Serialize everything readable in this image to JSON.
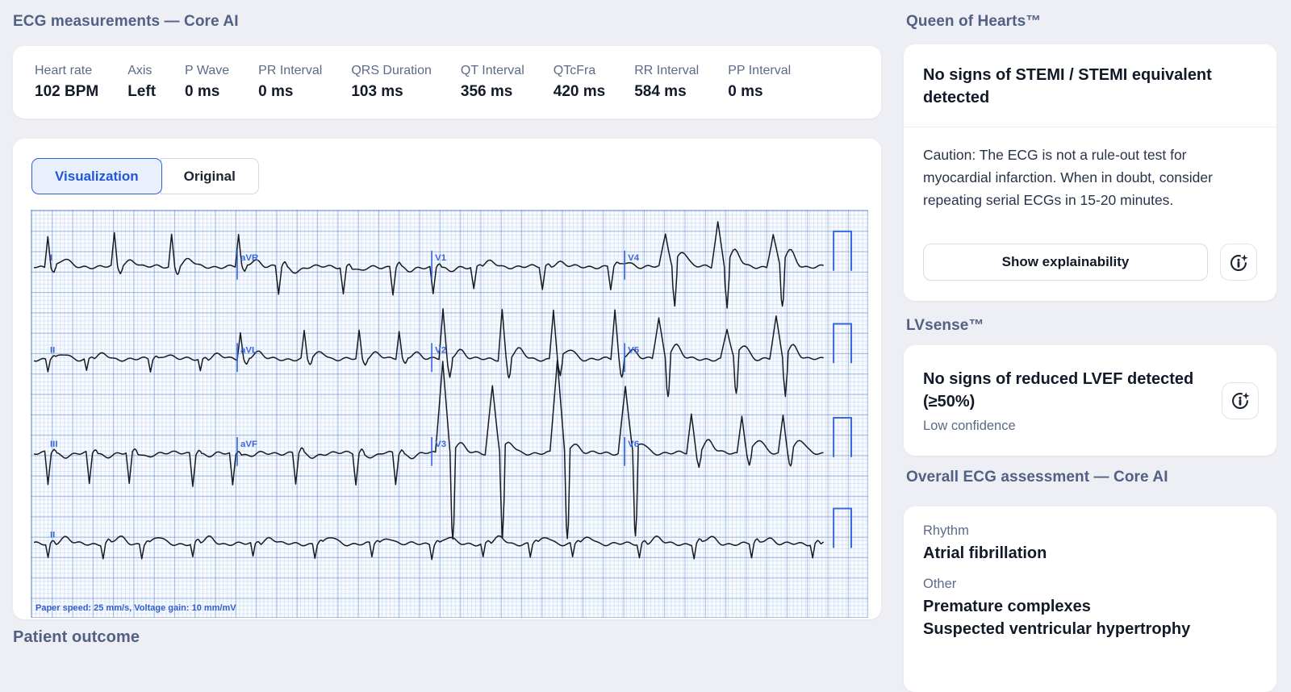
{
  "colors": {
    "accent_blue": "#2156d4",
    "ecg_blue": "#3a67e0",
    "trace_black": "#161a21",
    "heading_slate": "#516083",
    "label_slate": "#5b6b88",
    "page_bg": "#edeff4"
  },
  "ecg": {
    "title": "ECG measurements — Core AI",
    "measurements": [
      {
        "label": "Heart rate",
        "value": "102 BPM"
      },
      {
        "label": "Axis",
        "value": "Left"
      },
      {
        "label": "P Wave",
        "value": "0 ms"
      },
      {
        "label": "PR Interval",
        "value": "0 ms"
      },
      {
        "label": "QRS Duration",
        "value": "103 ms"
      },
      {
        "label": "QT Interval",
        "value": "356 ms"
      },
      {
        "label": "QTcFra",
        "value": "420 ms"
      },
      {
        "label": "RR Interval",
        "value": "584 ms"
      },
      {
        "label": "PP Interval",
        "value": "0 ms"
      }
    ],
    "tabs": [
      {
        "label": "Visualization",
        "active": true
      },
      {
        "label": "Original",
        "active": false
      }
    ],
    "chart": {
      "rows": [
        [
          "I",
          "aVR",
          "V1",
          "V4"
        ],
        [
          "II",
          "aVL",
          "V2",
          "V5"
        ],
        [
          "III",
          "aVF",
          "V3",
          "V6"
        ],
        [
          "II"
        ]
      ],
      "footnote": "Paper speed: 25 mm/s, Voltage gain: 10 mm/mV"
    }
  },
  "patient_outcome": {
    "title": "Patient outcome"
  },
  "qoh": {
    "title": "Queen of Hearts™",
    "result": "No signs of STEMI / STEMI equivalent detected",
    "caution": "Caution: The ECG is not a rule-out test for myocardial infarction. When in doubt, consider repeating serial ECGs in 15-20 minutes.",
    "button_label": "Show explainability"
  },
  "lvsense": {
    "title": "LVsense™",
    "result": "No signs of reduced LVEF detected (≥50%)",
    "confidence": "Low confidence"
  },
  "overall": {
    "title": "Overall ECG assessment — Core AI",
    "rhythm_label": "Rhythm",
    "rhythm_value": "Atrial fibrillation",
    "other_label": "Other",
    "other_values": [
      "Premature complexes",
      "Suspected ventricular hypertrophy"
    ]
  }
}
